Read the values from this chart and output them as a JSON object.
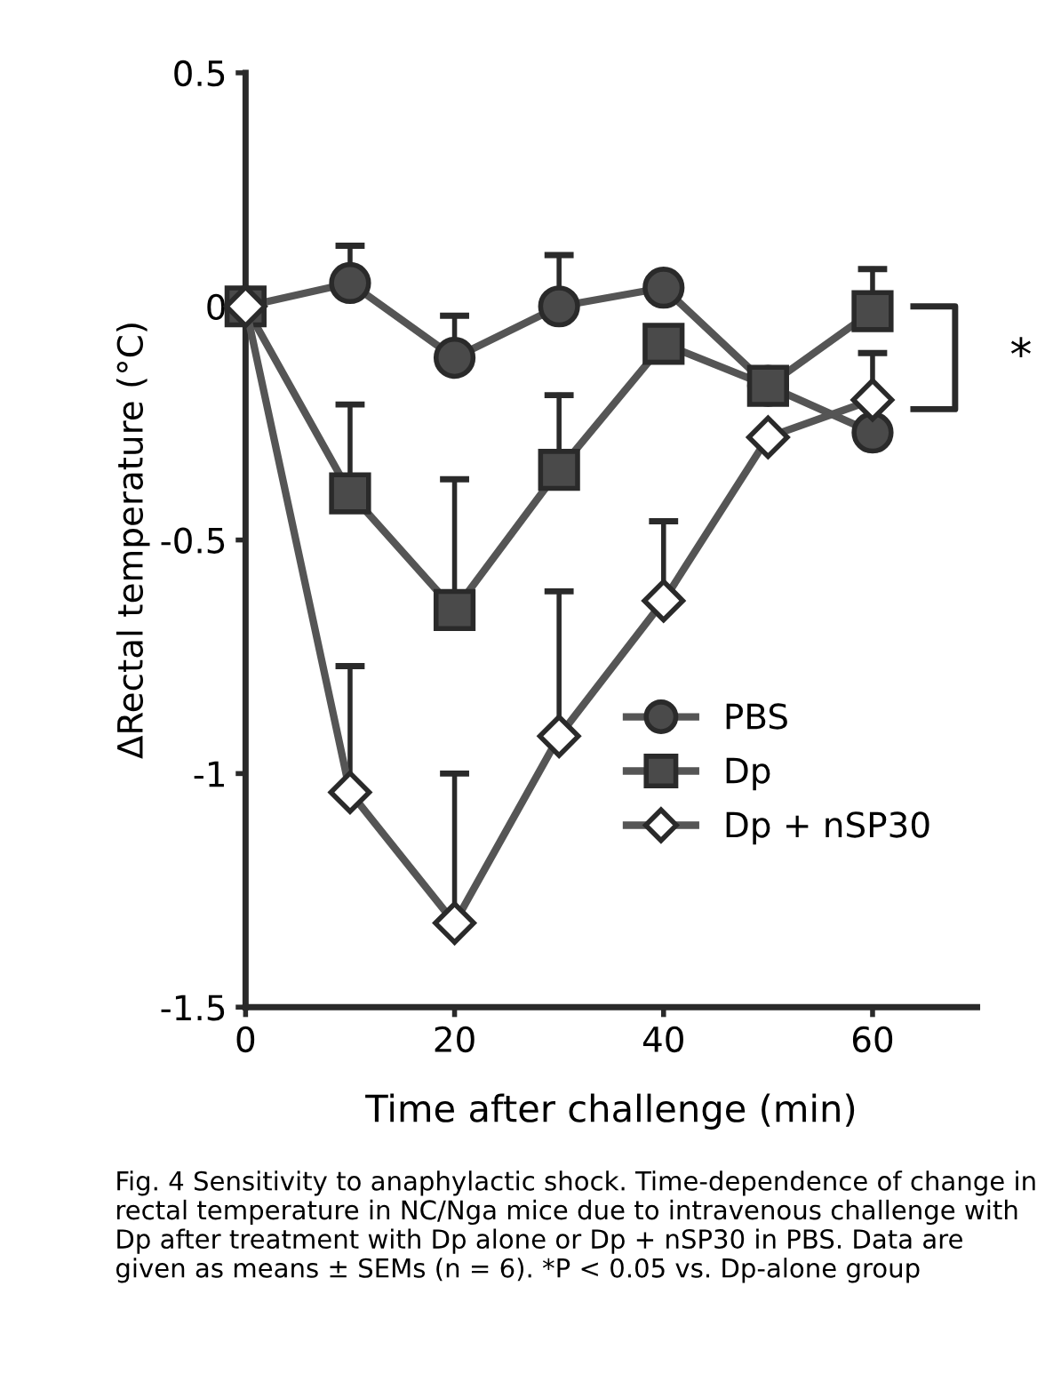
{
  "chart_data": {
    "type": "line",
    "xlabel": "Time after challenge (min)",
    "ylabel": "ΔRectal temperature (°C)",
    "x": [
      0,
      10,
      20,
      30,
      40,
      50,
      60
    ],
    "series": [
      {
        "name": "PBS",
        "color": "#4a4a4a",
        "marker": "circle",
        "values": [
          0,
          0.05,
          -0.11,
          0.0,
          0.04,
          -0.17,
          -0.27
        ],
        "errors": [
          null,
          [
            0.05,
            0.13
          ],
          [
            -0.11,
            -0.02
          ],
          [
            0.0,
            0.11
          ],
          null,
          null,
          null
        ]
      },
      {
        "name": "Dp",
        "color": "#4a4a4a",
        "marker": "square",
        "values": [
          0,
          -0.4,
          -0.65,
          -0.35,
          -0.08,
          -0.17,
          -0.01
        ],
        "errors": [
          null,
          [
            -0.4,
            -0.21
          ],
          [
            -0.65,
            -0.37
          ],
          [
            -0.35,
            -0.19
          ],
          null,
          null,
          [
            -0.01,
            0.08
          ]
        ]
      },
      {
        "name": "Dp + nSP30",
        "color": "#ffffff",
        "marker": "diamond",
        "values": [
          0,
          -1.04,
          -1.32,
          -0.92,
          -0.63,
          -0.28,
          -0.2
        ],
        "errors": [
          null,
          [
            -1.04,
            -0.77
          ],
          [
            -1.32,
            -1.0
          ],
          [
            -0.92,
            -0.61
          ],
          [
            -0.63,
            -0.46
          ],
          null,
          [
            -0.2,
            -0.1
          ]
        ]
      }
    ],
    "xlim": [
      0,
      70
    ],
    "xticks": [
      0,
      20,
      40,
      60
    ],
    "ylim": [
      -1.5,
      0.5
    ],
    "yticks": [
      {
        "value": -1.5,
        "label": "-1.5"
      },
      {
        "value": -1,
        "label": "-1"
      },
      {
        "value": -0.5,
        "label": "-0.5"
      },
      0,
      0.5
    ],
    "grid": false,
    "legend": "right",
    "line_style": "solid",
    "annotations": [
      "*",
      "Fig. 4 Sensitivity to anaphylactic shock. Time-dependence of change in rectal temperature in NC/Nga mice due to intravenous challenge with Dp after treatment with Dp alone or Dp + nSP30 in PBS. Data are given as means ± SEMs (n = 6). *P < 0.05 vs. Dp-alone group"
    ]
  }
}
